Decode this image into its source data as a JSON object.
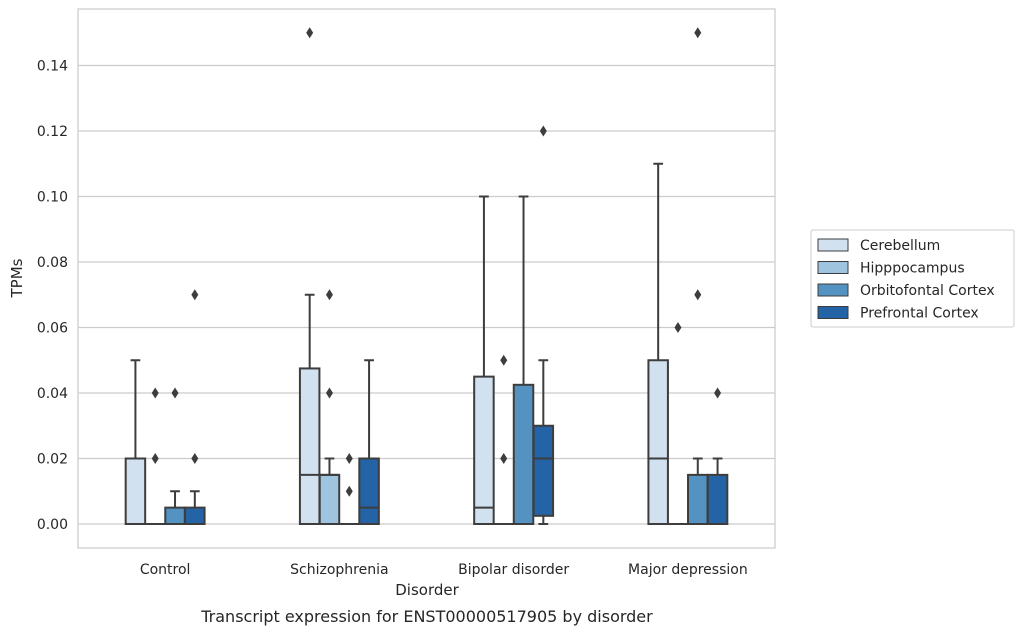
{
  "chart_data": {
    "type": "box",
    "xlabel": "Disorder",
    "ylabel": "TPMs",
    "caption": "Transcript expression for ENST00000517905 by disorder",
    "ylim": [
      -0.007,
      0.157
    ],
    "yticks": [
      "0.00",
      "0.02",
      "0.04",
      "0.06",
      "0.08",
      "0.10",
      "0.12",
      "0.14"
    ],
    "grid": "horizontal",
    "legend_position": "right",
    "categories": [
      "Control",
      "Schizophrenia",
      "Bipolar disorder",
      "Major depression"
    ],
    "series": [
      {
        "name": "Cerebellum",
        "color": "#d1e1ef",
        "boxes": [
          {
            "whislo": 0.0,
            "q1": 0.0,
            "med": 0.0,
            "q3": 0.02,
            "whishi": 0.05,
            "fliers": []
          },
          {
            "whislo": 0.0,
            "q1": 0.0,
            "med": 0.015,
            "q3": 0.0475,
            "whishi": 0.07,
            "fliers": [
              0.15
            ]
          },
          {
            "whislo": 0.0,
            "q1": 0.0,
            "med": 0.005,
            "q3": 0.045,
            "whishi": 0.1,
            "fliers": []
          },
          {
            "whislo": 0.0,
            "q1": 0.0,
            "med": 0.02,
            "q3": 0.05,
            "whishi": 0.11,
            "fliers": []
          }
        ]
      },
      {
        "name": "Hipppocampus",
        "color": "#9ec4df",
        "boxes": [
          {
            "whislo": 0.0,
            "q1": 0.0,
            "med": 0.0,
            "q3": 0.0,
            "whishi": 0.0,
            "fliers": [
              0.04,
              0.02
            ]
          },
          {
            "whislo": 0.0,
            "q1": 0.0,
            "med": 0.015,
            "q3": 0.015,
            "whishi": 0.02,
            "fliers": [
              0.07,
              0.04
            ]
          },
          {
            "whislo": 0.0,
            "q1": 0.0,
            "med": 0.0,
            "q3": 0.0,
            "whishi": 0.0,
            "fliers": [
              0.05,
              0.02
            ]
          },
          {
            "whislo": 0.0,
            "q1": 0.0,
            "med": 0.0,
            "q3": 0.0,
            "whishi": 0.0,
            "fliers": [
              0.06
            ]
          }
        ]
      },
      {
        "name": "Orbitofontal Cortex",
        "color": "#5392c1",
        "boxes": [
          {
            "whislo": 0.0,
            "q1": 0.0,
            "med": 0.0,
            "q3": 0.005,
            "whishi": 0.01,
            "fliers": [
              0.04
            ]
          },
          {
            "whislo": 0.0,
            "q1": 0.0,
            "med": 0.0,
            "q3": 0.0,
            "whishi": 0.0,
            "fliers": [
              0.02,
              0.01
            ]
          },
          {
            "whislo": 0.0,
            "q1": 0.0,
            "med": 0.0,
            "q3": 0.0425,
            "whishi": 0.1,
            "fliers": []
          },
          {
            "whislo": 0.0,
            "q1": 0.0,
            "med": 0.0,
            "q3": 0.015,
            "whishi": 0.02,
            "fliers": [
              0.15,
              0.07
            ]
          }
        ]
      },
      {
        "name": "Prefrontal Cortex",
        "color": "#2464a6",
        "boxes": [
          {
            "whislo": 0.0,
            "q1": 0.0,
            "med": 0.0,
            "q3": 0.005,
            "whishi": 0.01,
            "fliers": [
              0.07,
              0.02
            ]
          },
          {
            "whislo": 0.0,
            "q1": 0.0,
            "med": 0.005,
            "q3": 0.02,
            "whishi": 0.05,
            "fliers": []
          },
          {
            "whislo": 0.0,
            "q1": 0.0025,
            "med": 0.02,
            "q3": 0.03,
            "whishi": 0.05,
            "fliers": [
              0.12
            ]
          },
          {
            "whislo": 0.0,
            "q1": 0.0,
            "med": 0.0,
            "q3": 0.015,
            "whishi": 0.02,
            "fliers": [
              0.04
            ]
          }
        ]
      }
    ]
  }
}
